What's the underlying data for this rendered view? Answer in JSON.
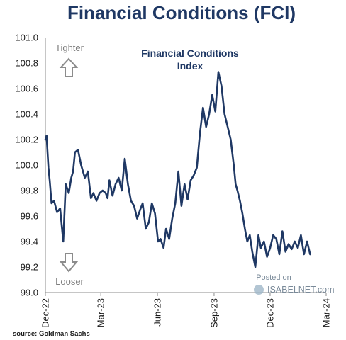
{
  "colors": {
    "line": "#1f3864",
    "title": "#1f3864",
    "arrow": "#8c8c8c",
    "axis": "#8c8c8c"
  },
  "annotations": {
    "tighter": "Tighter",
    "looser": "Looser",
    "source": "source: Goldman Sachs",
    "posted_on": "Posted on",
    "brand": "ISABELNET.com"
  },
  "chart_data": {
    "type": "line",
    "title": "Financial Conditions (FCI)",
    "subtitle": "Financial Conditions Index",
    "xlabel": "",
    "ylabel": "",
    "ylim": [
      99.0,
      101.0
    ],
    "yticks": [
      "101.0",
      "100.8",
      "100.6",
      "100.4",
      "100.2",
      "100.0",
      "99.8",
      "99.6",
      "99.4",
      "99.2",
      "99.0"
    ],
    "xticks": [
      "Dec-22",
      "Mar-23",
      "Jun-23",
      "Sep-23",
      "Dec-23",
      "Mar-24"
    ],
    "grid": false,
    "legend": "none",
    "series": [
      {
        "x": [
          "2022-12-01",
          "2022-12-03",
          "2022-12-06",
          "2022-12-08",
          "2022-12-11",
          "2022-12-15",
          "2022-12-20",
          "2022-12-25",
          "2022-12-30",
          "2023-01-03",
          "2023-01-08",
          "2023-01-12",
          "2023-01-15",
          "2023-01-18",
          "2023-01-23",
          "2023-01-28",
          "2023-02-03",
          "2023-02-08",
          "2023-02-13",
          "2023-02-17",
          "2023-02-22",
          "2023-02-27",
          "2023-03-04",
          "2023-03-09",
          "2023-03-12",
          "2023-03-15",
          "2023-03-20",
          "2023-03-25",
          "2023-03-30",
          "2023-04-04",
          "2023-04-09",
          "2023-04-14",
          "2023-04-19",
          "2023-04-24",
          "2023-04-29",
          "2023-05-04",
          "2023-05-08",
          "2023-05-13",
          "2023-05-18",
          "2023-05-23",
          "2023-05-28",
          "2023-06-02",
          "2023-06-06",
          "2023-06-11",
          "2023-06-15",
          "2023-06-20",
          "2023-06-25",
          "2023-06-30",
          "2023-07-05",
          "2023-07-10",
          "2023-07-15",
          "2023-07-20",
          "2023-07-25",
          "2023-07-30",
          "2023-08-04",
          "2023-08-09",
          "2023-08-14",
          "2023-08-19",
          "2023-08-24",
          "2023-08-29",
          "2023-09-03",
          "2023-09-08",
          "2023-09-13",
          "2023-09-18",
          "2023-09-23",
          "2023-09-28",
          "2023-10-03",
          "2023-10-06",
          "2023-10-09",
          "2023-10-13",
          "2023-10-17",
          "2023-10-21",
          "2023-10-25",
          "2023-10-29",
          "2023-11-02",
          "2023-11-07",
          "2023-11-12",
          "2023-11-16",
          "2023-11-21",
          "2023-11-26",
          "2023-12-01",
          "2023-12-06",
          "2023-12-11",
          "2023-12-16",
          "2023-12-21",
          "2023-12-26",
          "2023-12-31",
          "2024-01-05",
          "2024-01-10",
          "2024-01-15",
          "2024-01-20",
          "2024-01-25",
          "2024-01-30",
          "2024-02-04"
        ],
        "values": [
          100.2,
          100.23,
          99.98,
          99.88,
          99.7,
          99.72,
          99.63,
          99.66,
          99.4,
          99.85,
          99.78,
          99.9,
          99.95,
          100.1,
          100.12,
          100.0,
          99.9,
          99.95,
          99.74,
          99.78,
          99.72,
          99.78,
          99.8,
          99.78,
          99.74,
          99.88,
          99.76,
          99.85,
          99.9,
          99.8,
          100.05,
          99.85,
          99.72,
          99.68,
          99.58,
          99.65,
          99.7,
          99.5,
          99.55,
          99.7,
          99.62,
          99.4,
          99.42,
          99.35,
          99.5,
          99.42,
          99.58,
          99.7,
          99.95,
          99.68,
          99.85,
          99.73,
          99.88,
          99.92,
          99.98,
          100.25,
          100.45,
          100.3,
          100.4,
          100.55,
          100.42,
          100.73,
          100.62,
          100.4,
          100.3,
          100.2,
          100.0,
          99.85,
          99.8,
          99.72,
          99.62,
          99.5,
          99.4,
          99.45,
          99.32,
          99.2,
          99.45,
          99.35,
          99.4,
          99.28,
          99.35,
          99.45,
          99.42,
          99.3,
          99.48,
          99.32,
          99.38,
          99.34,
          99.4,
          99.35,
          99.45,
          99.3,
          99.4,
          99.3
        ]
      }
    ]
  }
}
